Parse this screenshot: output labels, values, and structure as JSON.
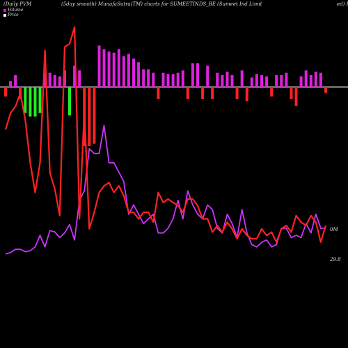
{
  "header": {
    "left": "(Daily PVM",
    "center_left": "(5day smooth) MunafaSutra(TM) charts for SUMEETINDS_BE",
    "center_right": "(Sumeet Ind Limit",
    "right": "ed) B"
  },
  "legend": {
    "items": [
      {
        "label": "Volume",
        "color": "#ff00ff"
      },
      {
        "label": "Price",
        "color": "#ffffff"
      }
    ]
  },
  "end_labels": {
    "volume": "0M",
    "price": "29.8"
  },
  "chart_data": {
    "type": "line",
    "x": [
      1,
      2,
      3,
      4,
      5,
      6,
      7,
      8,
      9,
      10,
      11,
      12,
      13,
      14,
      15,
      16,
      17,
      18,
      19,
      20,
      21,
      22,
      23,
      24,
      25,
      26,
      27,
      28,
      29,
      30,
      31,
      32,
      33,
      34,
      35,
      36,
      37,
      38,
      39,
      40,
      41,
      42,
      43,
      44,
      45,
      46,
      47,
      48,
      49,
      50,
      51,
      52,
      53,
      54,
      55,
      56,
      57,
      58,
      59,
      60,
      61,
      62,
      63,
      64,
      65,
      66
    ],
    "series": [
      {
        "name": "Volume",
        "color": "#cc33ff",
        "values": [
          0.15,
          0.18,
          0.25,
          0.25,
          0.2,
          0.22,
          0.3,
          0.55,
          0.3,
          0.65,
          0.62,
          0.5,
          0.6,
          0.78,
          0.45,
          1.3,
          1.5,
          2.4,
          2.3,
          2.3,
          2.9,
          2.1,
          2.1,
          1.9,
          1.7,
          1.0,
          1.2,
          1.0,
          0.8,
          0.9,
          1.0,
          0.6,
          0.6,
          0.7,
          0.9,
          1.3,
          0.9,
          1.5,
          1.2,
          1.0,
          0.9,
          1.2,
          1.1,
          0.7,
          0.6,
          1.0,
          0.8,
          0.5,
          1.1,
          0.6,
          0.35,
          0.3,
          0.4,
          0.45,
          0.3,
          0.35,
          0.7,
          0.7,
          0.5,
          0.55,
          0.5,
          0.8,
          0.6,
          1.0,
          0.7,
          0.7
        ]
      },
      {
        "name": "Price",
        "color": "#ff2222",
        "values": [
          4.5,
          5.0,
          5.2,
          5.6,
          4.8,
          3.5,
          2.6,
          3.5,
          6.9,
          3.2,
          2.7,
          1.9,
          7.0,
          7.1,
          7.6,
          1.8,
          5.1,
          1.5,
          2.0,
          2.6,
          2.8,
          2.9,
          2.6,
          2.8,
          2.5,
          2.0,
          2.0,
          1.8,
          2.0,
          2.0,
          1.7,
          2.6,
          2.3,
          2.4,
          2.3,
          2.2,
          2.0,
          2.4,
          2.4,
          2.2,
          1.8,
          1.8,
          1.4,
          1.6,
          1.4,
          1.7,
          1.5,
          1.2,
          1.5,
          1.3,
          1.2,
          1.2,
          1.5,
          1.3,
          1.4,
          1.1,
          1.5,
          1.6,
          1.4,
          1.9,
          1.7,
          1.6,
          1.9,
          1.7,
          1.1,
          1.6
        ]
      }
    ],
    "volume_bars": [
      -0.8,
      0.5,
      1.0,
      -1.0,
      -2.2,
      -2.5,
      -2.5,
      -2.2,
      1.2,
      1.2,
      1.0,
      0.9,
      1.4,
      -2.4,
      1.8,
      1.4,
      -5.0,
      -5.0,
      -4.8,
      3.5,
      3.2,
      3.0,
      2.9,
      3.2,
      2.6,
      2.8,
      2.4,
      2.1,
      1.5,
      1.5,
      1.2,
      -1.0,
      1.2,
      1.1,
      1.1,
      1.2,
      1.4,
      -1.0,
      2.0,
      2.0,
      -1.0,
      1.8,
      -1.0,
      1.2,
      1.0,
      1.3,
      1.0,
      -1.0,
      1.4,
      -1.2,
      0.8,
      1.1,
      1.0,
      0.9,
      -0.8,
      1.0,
      1.0,
      1.2,
      -1.0,
      -1.6,
      0.9,
      1.4,
      1.0,
      1.3,
      1.2,
      -0.5
    ],
    "ylim_price": [
      0,
      8
    ],
    "ylim_volume": [
      0,
      3.2
    ],
    "grid": false,
    "legend_position": "top-left"
  }
}
